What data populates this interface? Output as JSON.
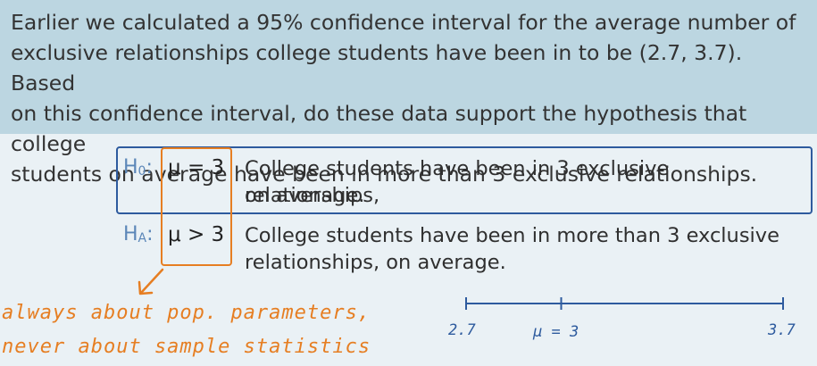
{
  "question": {
    "line1": "Earlier we calculated a 95% confidence interval for the average number of",
    "line2": "exclusive relationships college students have been in to be (2.7, 3.7). Based",
    "line3": "on this confidence interval, do these data support the hypothesis that college",
    "line4": "students on average have been in more than 3 exclusive relationships."
  },
  "hypotheses": {
    "null": {
      "symbol": "H",
      "subscript": "0",
      "colon": ":",
      "equation": "μ = 3",
      "desc_line1": "College students have been in 3 exclusive relationships,",
      "desc_line2": "on average."
    },
    "alt": {
      "symbol": "H",
      "subscript": "A",
      "colon": ":",
      "equation": "μ > 3",
      "desc_line1": "College students have been in more than 3 exclusive",
      "desc_line2": "relationships, on average."
    }
  },
  "annotation": {
    "line1": "always about pop. parameters,",
    "line2": "never about sample statistics"
  },
  "number_line": {
    "left_label": "2.7",
    "mid_label": "μ  =  3",
    "right_label": "3.7",
    "left_value": 2.7,
    "mid_value": 3,
    "right_value": 3.7
  },
  "colors": {
    "question_bg": "#bcd6e1",
    "page_bg": "#eaf1f5",
    "h0_outline": "#2e5b9e",
    "highlight": "#e67e22",
    "number_line": "#2e5b9e"
  }
}
